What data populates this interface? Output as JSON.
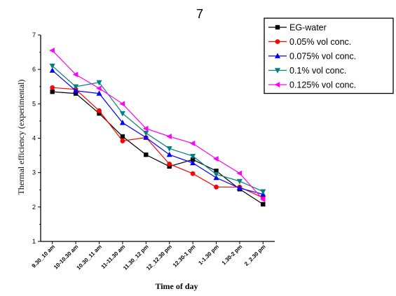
{
  "chart_data": {
    "type": "line",
    "title": "7",
    "xlabel": "Time of day",
    "ylabel": "Thermal efficiency (experimental)",
    "categories": [
      "9.30_10 am",
      "10-10.30 am",
      "10.30_11 am",
      "11-11.30 am",
      "11.30_12 pm",
      "12_12.30 pm",
      "12.30-1 pm",
      "1-1.30 pm",
      "1.30-2 pm",
      "2_2.30 pm"
    ],
    "ylim": [
      1,
      7
    ],
    "yticks": [
      "1",
      "2",
      "3",
      "4",
      "5",
      "6",
      "7"
    ],
    "grid": false,
    "legend_position": "top-right",
    "series": [
      {
        "name": "EG-water",
        "color": "#000000",
        "marker": "square",
        "values": [
          5.35,
          5.3,
          4.72,
          4.05,
          3.52,
          3.18,
          3.38,
          3.05,
          2.52,
          2.08
        ]
      },
      {
        "name": "0.05% vol conc.",
        "color": "#ff0000",
        "marker": "circle",
        "values": [
          5.47,
          5.42,
          4.8,
          3.92,
          4.02,
          3.25,
          2.97,
          2.58,
          2.58,
          2.27
        ]
      },
      {
        "name": "0.075% vol conc.",
        "color": "#0000ff",
        "marker": "triangle-up",
        "values": [
          5.97,
          5.38,
          5.3,
          4.45,
          4.02,
          3.52,
          3.28,
          2.85,
          2.55,
          2.37
        ]
      },
      {
        "name": "0.1% vol conc.",
        "color": "#008080",
        "marker": "triangle-down",
        "values": [
          6.1,
          5.5,
          5.62,
          4.72,
          4.15,
          3.7,
          3.48,
          2.95,
          2.75,
          2.45
        ]
      },
      {
        "name": "0.125% vol conc.",
        "color": "#ff00ff",
        "marker": "triangle-left",
        "values": [
          6.55,
          5.85,
          5.45,
          5.0,
          4.28,
          4.05,
          3.85,
          3.4,
          2.98,
          2.22
        ]
      }
    ]
  }
}
